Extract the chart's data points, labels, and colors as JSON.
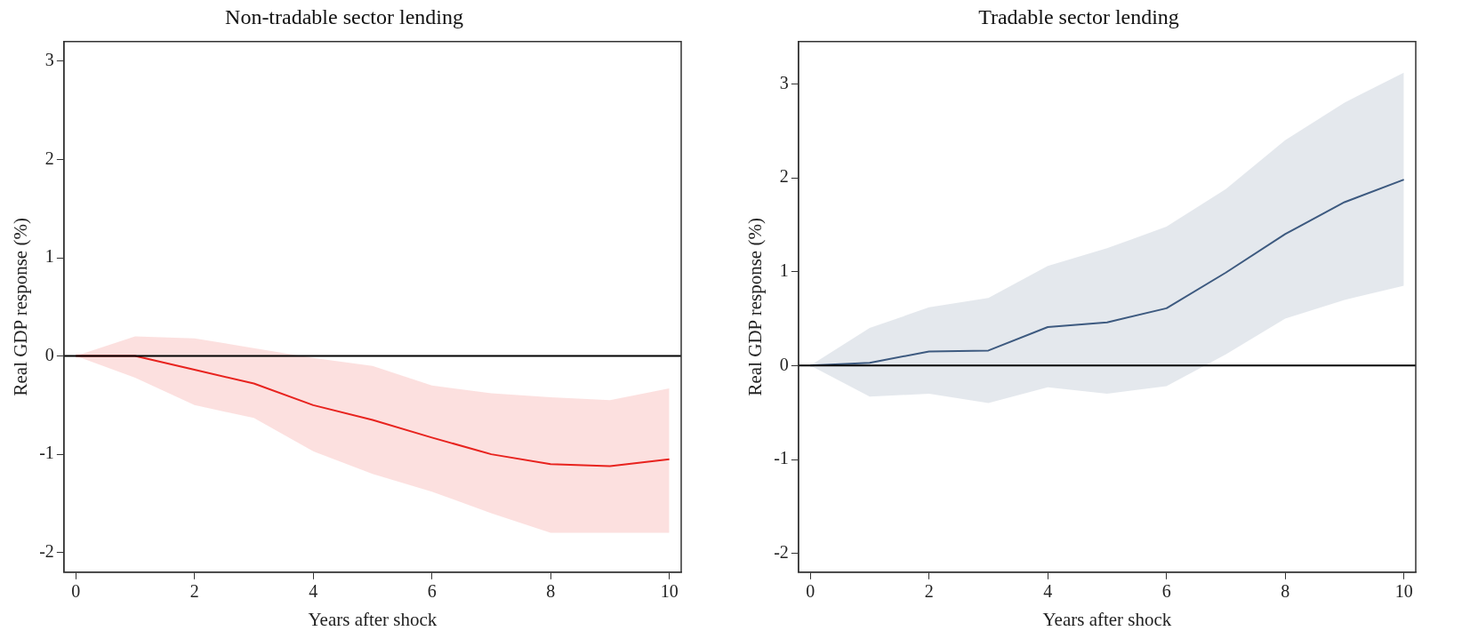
{
  "chart_data": [
    {
      "type": "line",
      "title": "Non-tradable sector lending",
      "xlabel": "Years after shock",
      "ylabel": "Real GDP response (%)",
      "x": [
        0,
        1,
        2,
        3,
        4,
        5,
        6,
        7,
        8,
        9,
        10
      ],
      "series": [
        {
          "color": "#e8231f",
          "values": [
            0,
            0,
            -0.14,
            -0.28,
            -0.5,
            -0.65,
            -0.83,
            -1.0,
            -1.1,
            -1.12,
            -1.05
          ],
          "lower": [
            0,
            -0.22,
            -0.5,
            -0.63,
            -0.97,
            -1.2,
            -1.38,
            -1.6,
            -1.8,
            -1.8,
            -1.8
          ],
          "upper": [
            0,
            0.2,
            0.18,
            0.08,
            -0.02,
            -0.1,
            -0.3,
            -0.38,
            -0.42,
            -0.45,
            -0.33
          ]
        }
      ],
      "xlim": [
        -0.2,
        10.2
      ],
      "xticks": [
        0,
        2,
        4,
        6,
        8,
        10
      ],
      "ylim": [
        -2.2,
        3.2
      ],
      "yticks": [
        -2,
        -1,
        0,
        1,
        2,
        3
      ],
      "ref_lines": [
        {
          "axis": "y",
          "value": 0,
          "color": "#000000"
        }
      ],
      "grid": false,
      "legend": false,
      "marker": "none",
      "line_style": "solid"
    },
    {
      "type": "line",
      "title": "Tradable sector lending",
      "xlabel": "Years after shock",
      "ylabel": "Real GDP response (%)",
      "x": [
        0,
        1,
        2,
        3,
        4,
        5,
        6,
        7,
        8,
        9,
        10
      ],
      "series": [
        {
          "color": "#3d5a80",
          "values": [
            0,
            0.03,
            0.15,
            0.16,
            0.41,
            0.46,
            0.61,
            0.99,
            1.4,
            1.74,
            1.98
          ],
          "lower": [
            0,
            -0.33,
            -0.3,
            -0.4,
            -0.23,
            -0.3,
            -0.22,
            0.12,
            0.5,
            0.7,
            0.85
          ],
          "upper": [
            0,
            0.4,
            0.62,
            0.72,
            1.06,
            1.25,
            1.48,
            1.88,
            2.4,
            2.8,
            3.12
          ]
        }
      ],
      "xlim": [
        -0.2,
        10.2
      ],
      "xticks": [
        0,
        2,
        4,
        6,
        8,
        10
      ],
      "ylim": [
        -2.2,
        3.45
      ],
      "yticks": [
        -2,
        -1,
        0,
        1,
        2,
        3
      ],
      "ref_lines": [
        {
          "axis": "y",
          "value": 0,
          "color": "#000000"
        }
      ],
      "grid": false,
      "legend": false,
      "marker": "none",
      "line_style": "solid"
    }
  ]
}
